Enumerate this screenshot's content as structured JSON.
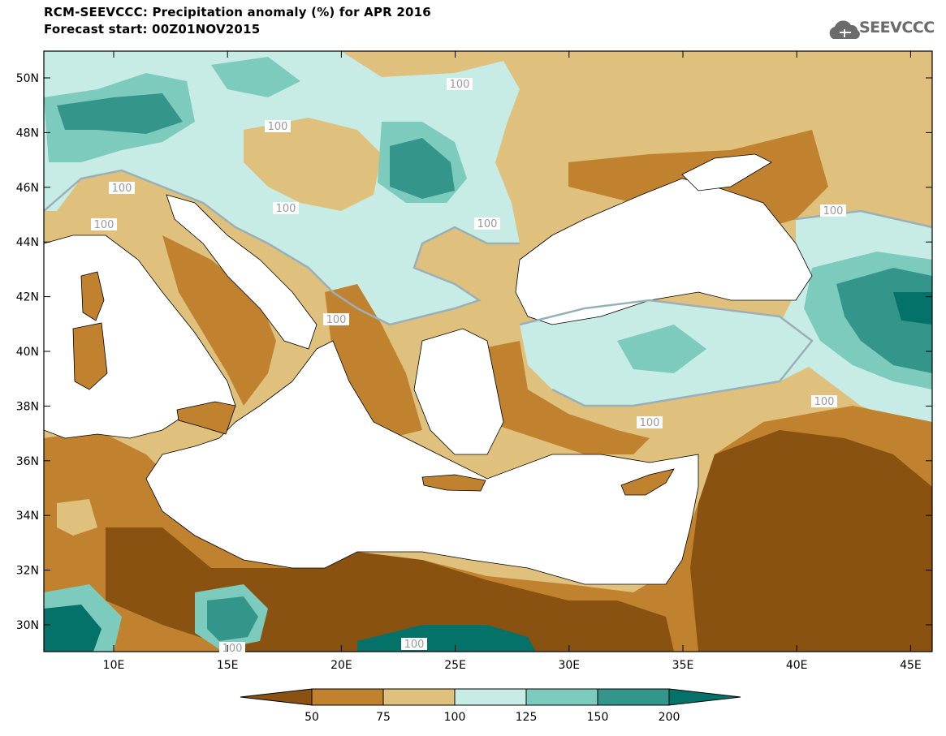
{
  "title": {
    "line1": "RCM-SEEVCCC: Precipitation anomaly (%) for APR 2016",
    "line2": "Forecast start: 00Z01NOV2015"
  },
  "logo": {
    "text": "SEEVCCC",
    "icon": "cloud-icon"
  },
  "map": {
    "lat_labels": [
      "50N",
      "48N",
      "46N",
      "44N",
      "42N",
      "40N",
      "38N",
      "36N",
      "34N",
      "32N",
      "30N"
    ],
    "lon_labels": [
      "10E",
      "15E",
      "20E",
      "25E",
      "30E",
      "35E",
      "40E",
      "45E"
    ],
    "contour_labels": [
      "100",
      "100",
      "100",
      "100",
      "100",
      "100",
      "100",
      "100",
      "100",
      "100",
      "100",
      "100",
      "100"
    ]
  },
  "colorbar": {
    "ticks": [
      "50",
      "75",
      "100",
      "125",
      "150",
      "200"
    ],
    "colors": [
      "#8a5210",
      "#c0822f",
      "#dfc07c",
      "#c7ebe5",
      "#7ccbbd",
      "#34968a",
      "#05726a"
    ]
  },
  "colors": {
    "very_dry": "#8a5210",
    "dry": "#c0822f",
    "slightly_dry": "#dfc07c",
    "slightly_wet": "#c7ebe5",
    "wet": "#7ccbbd",
    "very_wet": "#34968a",
    "extremely_wet": "#05726a",
    "sea": "#ffffff",
    "contour_100": "#9ab0b8"
  }
}
